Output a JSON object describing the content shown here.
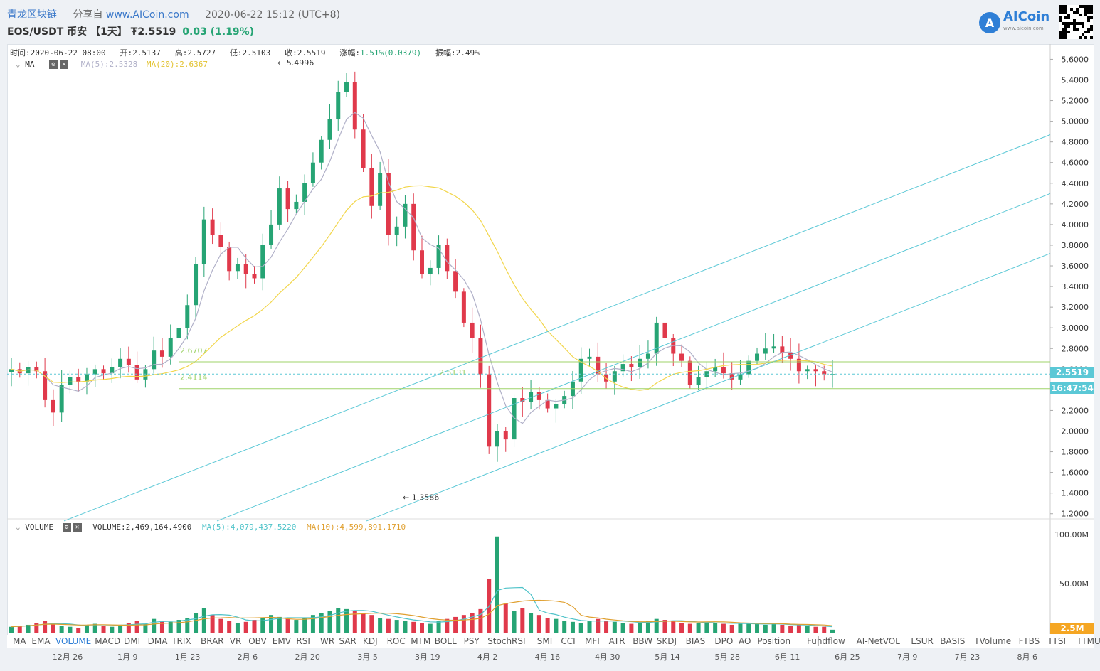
{
  "header": {
    "brand": "青龙区块链",
    "share_prefix": "分享自",
    "site": "www.AICoin.com",
    "timestamp": "2020-06-22 15:12 (UTC+8)",
    "symbol": "EOS/USDT 币安 【1天】 ₮2.5519",
    "change": "0.03 (1.19%)"
  },
  "logo": {
    "name": "AICoin",
    "sub": "www.aicoin.com"
  },
  "ohlc": {
    "time": "时间:2020-06-22 08:00",
    "open": "开:2.5137",
    "high": "高:2.5727",
    "low": "低:2.5103",
    "close": "收:2.5519",
    "chg_label": "涨幅:",
    "chg_value": "1.51%(0.0379)",
    "amp": "振幅:2.49%"
  },
  "ma_legend": {
    "name": "MA",
    "ma5": "MA(5):2.5328",
    "ma20": "MA(20):2.6367"
  },
  "vol_legend": {
    "name": "VOLUME",
    "vol": "VOLUME:2,469,164.4900",
    "ma5": "MA(5):4,079,437.5220",
    "ma10": "MA(10):4,599,891.1710"
  },
  "annotations": {
    "high": "5.4996",
    "low": "1.3586",
    "fib_top": "2.6707",
    "fib_mid": "2.5131",
    "fib_bot": "2.4114"
  },
  "price_tag": "2.5519",
  "countdown": "16:47:54",
  "vol_tag": "2.5M",
  "indicators": [
    "MA",
    "EMA",
    "VOLUME",
    "MACD",
    "DMI",
    "DMA",
    "TRIX",
    "BRAR",
    "VR",
    "OBV",
    "EMV",
    "RSI",
    "WR",
    "SAR",
    "KDJ",
    "ROC",
    "MTM",
    "BOLL",
    "PSY",
    "StochRSI",
    "SMI",
    "CCI",
    "MFI",
    "ATR",
    "BBW",
    "SKDJ",
    "BIAS",
    "DPO",
    "AO",
    "Position",
    "Fundflow",
    "AI-NetVOL",
    "LSUR",
    "BASIS",
    "TVolume",
    "FTBS",
    "TTSI",
    "TTMU"
  ],
  "selected_indicator": "VOLUME",
  "colors": {
    "up": "#26a474",
    "down": "#e0394b",
    "ma5": "#b0b0c8",
    "ma20": "#f2d64b",
    "channel": "#5bc8d6",
    "fib": "#9fd36a"
  },
  "chart_data": {
    "type": "candlestick",
    "x_ticks": [
      "12月 26",
      "1月 9",
      "1月 23",
      "2月 6",
      "2月 20",
      "3月 5",
      "3月 19",
      "4月 2",
      "4月 16",
      "4月 30",
      "5月 14",
      "5月 28",
      "6月 11",
      "6月 25",
      "7月 9",
      "7月 23",
      "8月 6"
    ],
    "y_ticks": [
      "5.6000",
      "5.4000",
      "5.2000",
      "5.0000",
      "4.8000",
      "4.6000",
      "4.4000",
      "4.2000",
      "4.0000",
      "3.8000",
      "3.6000",
      "3.4000",
      "3.2000",
      "3.0000",
      "2.8000",
      "2.6000",
      "2.4000",
      "2.2000",
      "2.0000",
      "1.8000",
      "1.6000",
      "1.4000",
      "1.2000"
    ],
    "ylim": [
      1.15,
      5.72
    ],
    "vol_ticks": [
      "100.00M",
      "50.00M"
    ],
    "vol_max": 100,
    "close_path": [
      2.6,
      2.56,
      2.62,
      2.58,
      2.3,
      2.18,
      2.45,
      2.52,
      2.48,
      2.55,
      2.6,
      2.56,
      2.62,
      2.7,
      2.64,
      2.5,
      2.6,
      2.78,
      2.72,
      2.9,
      3.0,
      3.22,
      3.62,
      4.05,
      3.9,
      3.78,
      3.55,
      3.62,
      3.52,
      3.48,
      3.8,
      4.0,
      4.35,
      4.15,
      4.22,
      4.4,
      4.6,
      4.82,
      5.02,
      5.28,
      5.38,
      4.92,
      4.55,
      4.18,
      4.5,
      3.9,
      3.98,
      4.2,
      3.75,
      3.52,
      3.58,
      3.8,
      3.55,
      3.35,
      3.05,
      2.9,
      2.55,
      1.85,
      2.0,
      1.92,
      2.32,
      2.28,
      2.38,
      2.3,
      2.22,
      2.26,
      2.34,
      2.48,
      2.7,
      2.72,
      2.55,
      2.48,
      2.58,
      2.65,
      2.62,
      2.7,
      2.75,
      3.05,
      2.9,
      2.75,
      2.68,
      2.45,
      2.52,
      2.58,
      2.62,
      2.56,
      2.5,
      2.55,
      2.68,
      2.75,
      2.8,
      2.82,
      2.76,
      2.7,
      2.58,
      2.6,
      2.58,
      2.55,
      2.5519
    ],
    "volume_M": [
      6,
      7,
      8,
      10,
      12,
      9,
      7,
      6,
      5,
      8,
      9,
      7,
      6,
      8,
      10,
      12,
      9,
      14,
      12,
      11,
      13,
      15,
      20,
      25,
      18,
      14,
      12,
      10,
      11,
      13,
      15,
      18,
      16,
      14,
      13,
      15,
      18,
      20,
      22,
      25,
      24,
      22,
      20,
      18,
      15,
      14,
      13,
      12,
      11,
      10,
      9,
      12,
      14,
      16,
      18,
      20,
      24,
      55,
      98,
      30,
      22,
      25,
      20,
      18,
      15,
      14,
      12,
      11,
      10,
      12,
      14,
      12,
      11,
      10,
      9,
      10,
      12,
      14,
      13,
      12,
      10,
      9,
      10,
      11,
      10,
      9,
      8,
      9,
      10,
      9,
      8,
      9,
      8,
      7,
      8,
      7,
      6,
      6,
      3
    ]
  }
}
